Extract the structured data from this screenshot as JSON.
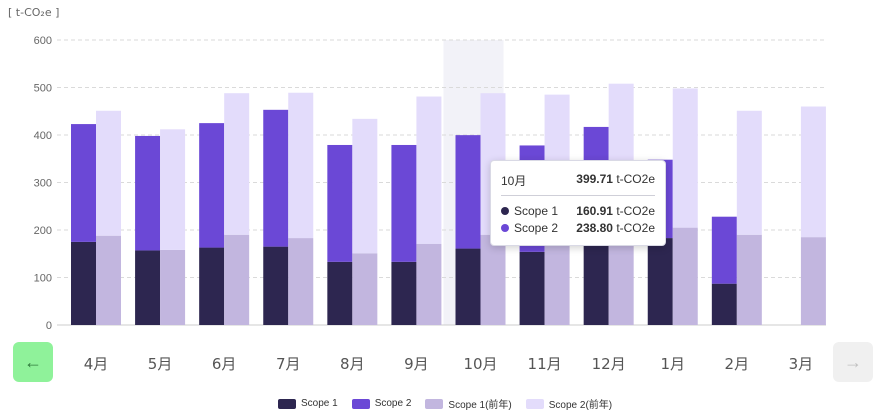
{
  "chart_data": {
    "type": "bar",
    "unit_label": "[ t-CO₂e ]",
    "categories": [
      "4月",
      "5月",
      "6月",
      "7月",
      "8月",
      "9月",
      "10月",
      "11月",
      "12月",
      "1月",
      "2月",
      "3月"
    ],
    "ylim": [
      0,
      600
    ],
    "yticks": [
      0,
      100,
      200,
      300,
      400,
      500,
      600
    ],
    "grid": true,
    "stacked": true,
    "series": [
      {
        "name": "Scope 1",
        "stack": "current",
        "color": "#2d2650",
        "values": [
          175,
          157,
          163,
          165,
          133,
          133,
          160.91,
          154,
          183,
          183,
          87,
          null
        ]
      },
      {
        "name": "Scope 2",
        "stack": "current",
        "color": "#6b48d6",
        "values": [
          248,
          241,
          262,
          288,
          246,
          246,
          238.8,
          224,
          234,
          165,
          141,
          null
        ]
      },
      {
        "name": "Scope 1(前年)",
        "stack": "previous",
        "color": "#c2b6df",
        "values": [
          188,
          158,
          190,
          183,
          151,
          171,
          190,
          180,
          178,
          205,
          190,
          185
        ]
      },
      {
        "name": "Scope 2(前年)",
        "stack": "previous",
        "color": "#e3dcfb",
        "values": [
          263,
          254,
          298,
          306,
          283,
          310,
          298,
          305,
          330,
          293,
          261,
          275
        ]
      }
    ],
    "highlight_index": 6,
    "legend_position": "bottom"
  },
  "tooltip": {
    "month": "10月",
    "total": "399.71",
    "unit": "t-CO2e",
    "rows": [
      {
        "name": "Scope 1",
        "value": "160.91",
        "color": "#2d2650"
      },
      {
        "name": "Scope 2",
        "value": "238.80",
        "color": "#6b48d6"
      }
    ]
  },
  "nav": {
    "prev_icon": "arrow-left-icon",
    "next_icon": "arrow-right-icon",
    "prev_color": "#8ff29a"
  }
}
